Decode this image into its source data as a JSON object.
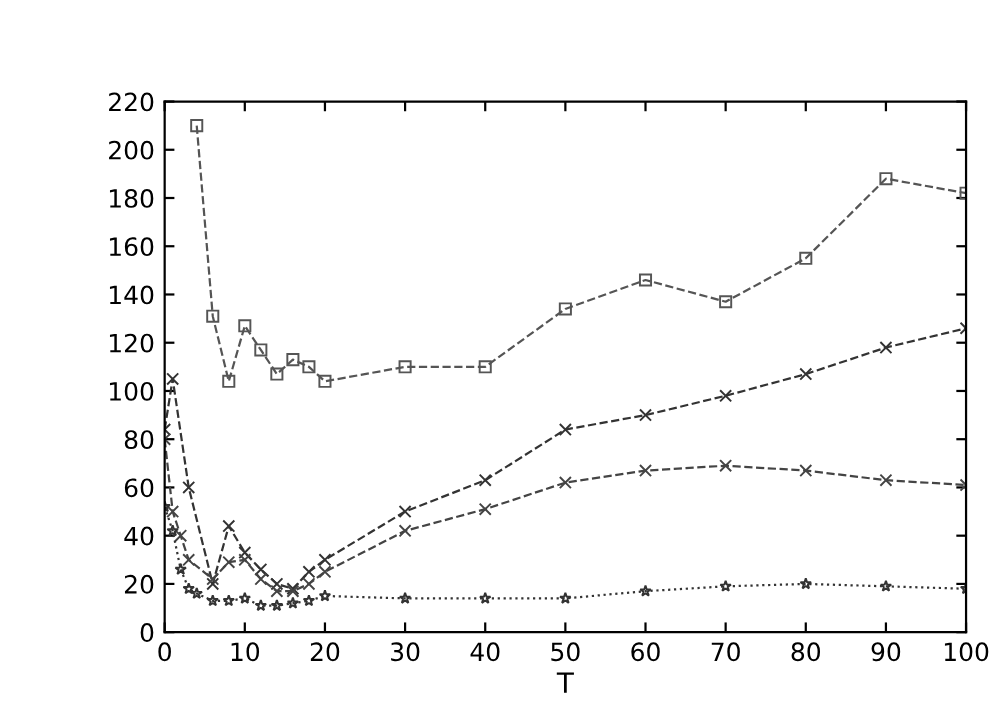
{
  "chart_data": {
    "type": "line",
    "xlabel": "T",
    "xlim": [
      0,
      100
    ],
    "xticks": [
      0,
      10,
      20,
      30,
      40,
      50,
      60,
      70,
      80,
      90,
      100
    ],
    "ylim": [
      0,
      220
    ],
    "yticks": [
      0,
      20,
      40,
      60,
      80,
      100,
      120,
      140,
      160,
      180,
      200,
      220
    ],
    "grid": false,
    "legend": false,
    "series": [
      {
        "color": "#555555",
        "marker": "square",
        "line_style": "dashed",
        "x": [
          4,
          6,
          8,
          10,
          12,
          14,
          16,
          18,
          20,
          30,
          40,
          50,
          60,
          70,
          80,
          90,
          100
        ],
        "values": [
          210,
          131,
          104,
          127,
          117,
          107,
          113,
          110,
          104,
          110,
          110,
          134,
          146,
          137,
          155,
          188,
          182
        ]
      },
      {
        "color": "#333333",
        "marker": "cross",
        "line_style": "dashed",
        "x": [
          0,
          1,
          3,
          6,
          8,
          10,
          12,
          14,
          16,
          18,
          20,
          30,
          40,
          50,
          60,
          70,
          80,
          90,
          100
        ],
        "values": [
          84,
          105,
          60,
          20,
          44,
          33,
          26,
          20,
          18,
          25,
          30,
          50,
          63,
          84,
          90,
          98,
          107,
          118,
          126
        ]
      },
      {
        "color": "#444444",
        "marker": "cross",
        "line_style": "dashed",
        "x": [
          0,
          1,
          2,
          3,
          6,
          8,
          10,
          12,
          14,
          16,
          18,
          20,
          30,
          40,
          50,
          60,
          70,
          80,
          90,
          100
        ],
        "values": [
          80,
          50,
          40,
          30,
          22,
          29,
          30,
          22,
          17,
          17,
          20,
          25,
          42,
          51,
          62,
          67,
          69,
          67,
          63,
          61
        ]
      },
      {
        "color": "#333333",
        "marker": "star",
        "line_style": "dotted",
        "x": [
          0,
          1,
          2,
          3,
          4,
          6,
          8,
          10,
          12,
          14,
          16,
          18,
          20,
          30,
          40,
          50,
          60,
          70,
          80,
          90,
          100
        ],
        "values": [
          52,
          42,
          26,
          18,
          16,
          13,
          13,
          14,
          11,
          11,
          12,
          13,
          15,
          14,
          14,
          14,
          17,
          19,
          20,
          19,
          18
        ]
      }
    ]
  }
}
